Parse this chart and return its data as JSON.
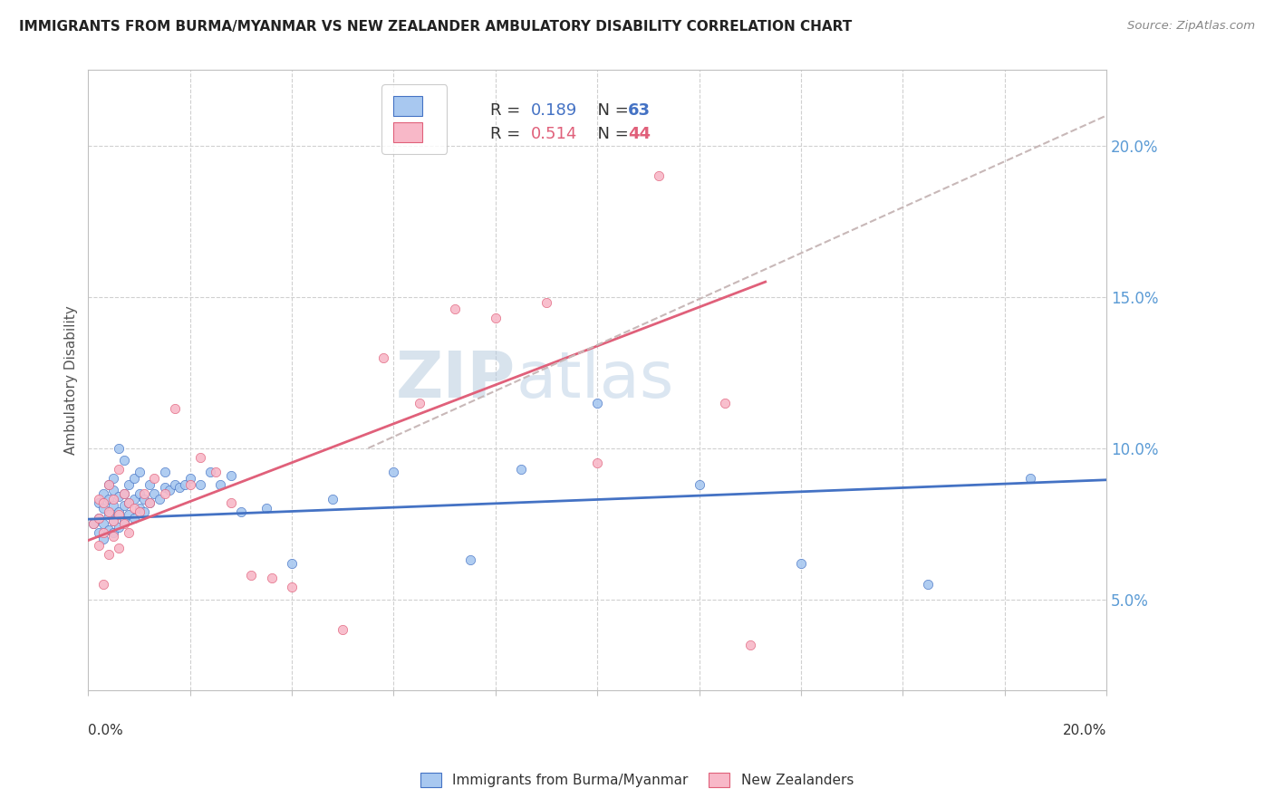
{
  "title": "IMMIGRANTS FROM BURMA/MYANMAR VS NEW ZEALANDER AMBULATORY DISABILITY CORRELATION CHART",
  "source": "Source: ZipAtlas.com",
  "ylabel": "Ambulatory Disability",
  "right_yticks": [
    "20.0%",
    "15.0%",
    "10.0%",
    "5.0%"
  ],
  "right_ytick_vals": [
    0.2,
    0.15,
    0.1,
    0.05
  ],
  "xmin": 0.0,
  "xmax": 0.2,
  "ymin": 0.02,
  "ymax": 0.225,
  "legend_R1": "R = 0.189",
  "legend_N1": "N = 63",
  "legend_R2": "R = 0.514",
  "legend_N2": "N = 44",
  "blue_color": "#A8C8F0",
  "pink_color": "#F8B8C8",
  "blue_line_color": "#4472C4",
  "pink_line_color": "#E0607A",
  "dashed_line_color": "#C8B8B8",
  "watermark_zip": "ZIP",
  "watermark_atlas": "atlas",
  "blue_scatter_x": [
    0.001,
    0.002,
    0.002,
    0.002,
    0.003,
    0.003,
    0.003,
    0.003,
    0.004,
    0.004,
    0.004,
    0.004,
    0.005,
    0.005,
    0.005,
    0.005,
    0.005,
    0.006,
    0.006,
    0.006,
    0.006,
    0.007,
    0.007,
    0.007,
    0.007,
    0.008,
    0.008,
    0.008,
    0.009,
    0.009,
    0.009,
    0.01,
    0.01,
    0.01,
    0.011,
    0.011,
    0.012,
    0.012,
    0.013,
    0.014,
    0.015,
    0.015,
    0.016,
    0.017,
    0.018,
    0.019,
    0.02,
    0.022,
    0.024,
    0.026,
    0.028,
    0.03,
    0.035,
    0.04,
    0.048,
    0.06,
    0.075,
    0.085,
    0.1,
    0.12,
    0.14,
    0.165,
    0.185
  ],
  "blue_scatter_y": [
    0.075,
    0.072,
    0.077,
    0.082,
    0.07,
    0.075,
    0.08,
    0.085,
    0.073,
    0.078,
    0.083,
    0.088,
    0.072,
    0.076,
    0.081,
    0.086,
    0.09,
    0.074,
    0.079,
    0.084,
    0.1,
    0.076,
    0.081,
    0.085,
    0.096,
    0.078,
    0.082,
    0.088,
    0.077,
    0.083,
    0.09,
    0.08,
    0.085,
    0.092,
    0.079,
    0.083,
    0.082,
    0.088,
    0.085,
    0.083,
    0.087,
    0.092,
    0.086,
    0.088,
    0.087,
    0.088,
    0.09,
    0.088,
    0.092,
    0.088,
    0.091,
    0.079,
    0.08,
    0.062,
    0.083,
    0.092,
    0.063,
    0.093,
    0.115,
    0.088,
    0.062,
    0.055,
    0.09
  ],
  "pink_scatter_x": [
    0.001,
    0.002,
    0.002,
    0.002,
    0.003,
    0.003,
    0.003,
    0.004,
    0.004,
    0.004,
    0.005,
    0.005,
    0.005,
    0.006,
    0.006,
    0.006,
    0.007,
    0.007,
    0.008,
    0.008,
    0.009,
    0.01,
    0.011,
    0.012,
    0.013,
    0.015,
    0.017,
    0.02,
    0.022,
    0.025,
    0.028,
    0.032,
    0.036,
    0.04,
    0.05,
    0.058,
    0.065,
    0.072,
    0.08,
    0.09,
    0.1,
    0.112,
    0.125,
    0.13
  ],
  "pink_scatter_y": [
    0.075,
    0.068,
    0.077,
    0.083,
    0.055,
    0.072,
    0.082,
    0.065,
    0.079,
    0.088,
    0.071,
    0.076,
    0.083,
    0.067,
    0.078,
    0.093,
    0.075,
    0.085,
    0.072,
    0.082,
    0.08,
    0.079,
    0.085,
    0.082,
    0.09,
    0.085,
    0.113,
    0.088,
    0.097,
    0.092,
    0.082,
    0.058,
    0.057,
    0.054,
    0.04,
    0.13,
    0.115,
    0.146,
    0.143,
    0.148,
    0.095,
    0.19,
    0.115,
    0.035
  ],
  "blue_trend_x": [
    0.0,
    0.2
  ],
  "blue_trend_y": [
    0.0765,
    0.0895
  ],
  "pink_trend_x": [
    0.0,
    0.133
  ],
  "pink_trend_y": [
    0.0695,
    0.155
  ],
  "dashed_trend_x": [
    0.055,
    0.2
  ],
  "dashed_trend_y": [
    0.1,
    0.21
  ],
  "bottom_legend_labels": [
    "Immigrants from Burma/Myanmar",
    "New Zealanders"
  ]
}
